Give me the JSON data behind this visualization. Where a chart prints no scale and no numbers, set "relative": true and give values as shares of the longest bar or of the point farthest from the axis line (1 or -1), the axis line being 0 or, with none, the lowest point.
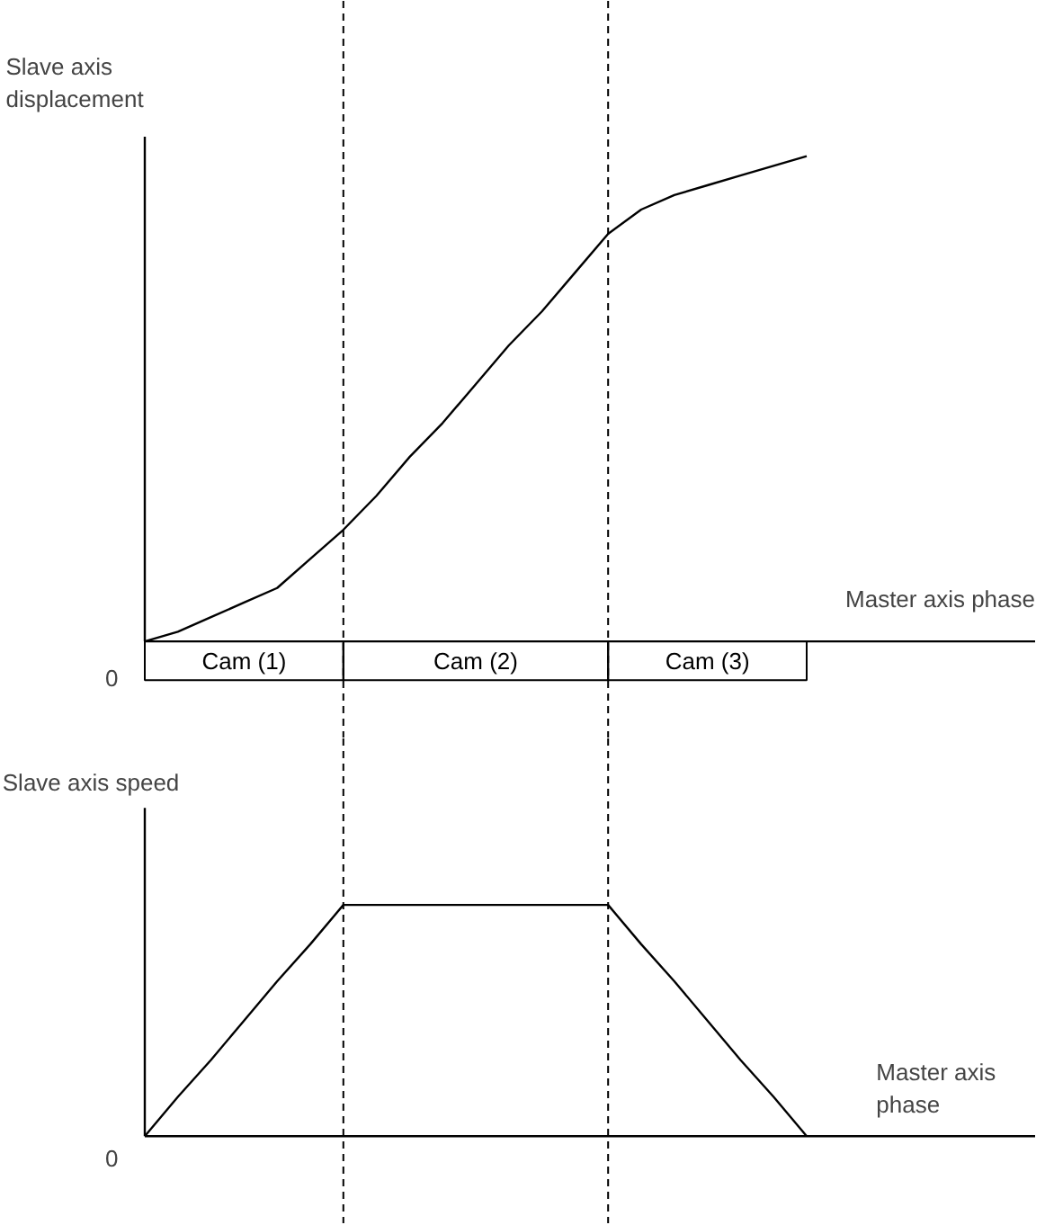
{
  "chart_data": [
    {
      "type": "line",
      "relative": true,
      "ylabel": "Slave axis\ndisplacement",
      "xlabel": "Master axis phase",
      "color": "#000000",
      "categories": [
        null,
        null,
        null,
        null,
        null,
        null,
        null,
        null,
        null,
        null,
        null,
        null,
        null,
        null,
        null,
        null,
        null,
        null,
        null,
        null,
        null
      ],
      "values": [
        0,
        0.02,
        0.05,
        0.08,
        0.11,
        0.17,
        0.23,
        0.3,
        0.38,
        0.45,
        0.53,
        0.61,
        0.68,
        0.76,
        0.84,
        0.89,
        0.92,
        0.94,
        0.96,
        0.98,
        1.0
      ],
      "annotations": [
        "0",
        "Cam (1)",
        "Cam (2)",
        "Cam (3)"
      ]
    },
    {
      "type": "line",
      "relative": true,
      "ylabel": "Slave axis speed",
      "xlabel": "Master axis\nphase",
      "color": "#000000",
      "categories": [
        null,
        null,
        null,
        null,
        null,
        null,
        null,
        null,
        null,
        null,
        null,
        null,
        null,
        null,
        null,
        null,
        null,
        null,
        null,
        null,
        null
      ],
      "values": [
        0,
        0.17,
        0.33,
        0.5,
        0.67,
        0.83,
        1,
        1,
        1,
        1,
        1,
        1,
        1,
        1,
        1,
        0.83,
        0.67,
        0.5,
        0.33,
        0.17,
        0
      ],
      "annotations": [
        "0"
      ]
    }
  ]
}
